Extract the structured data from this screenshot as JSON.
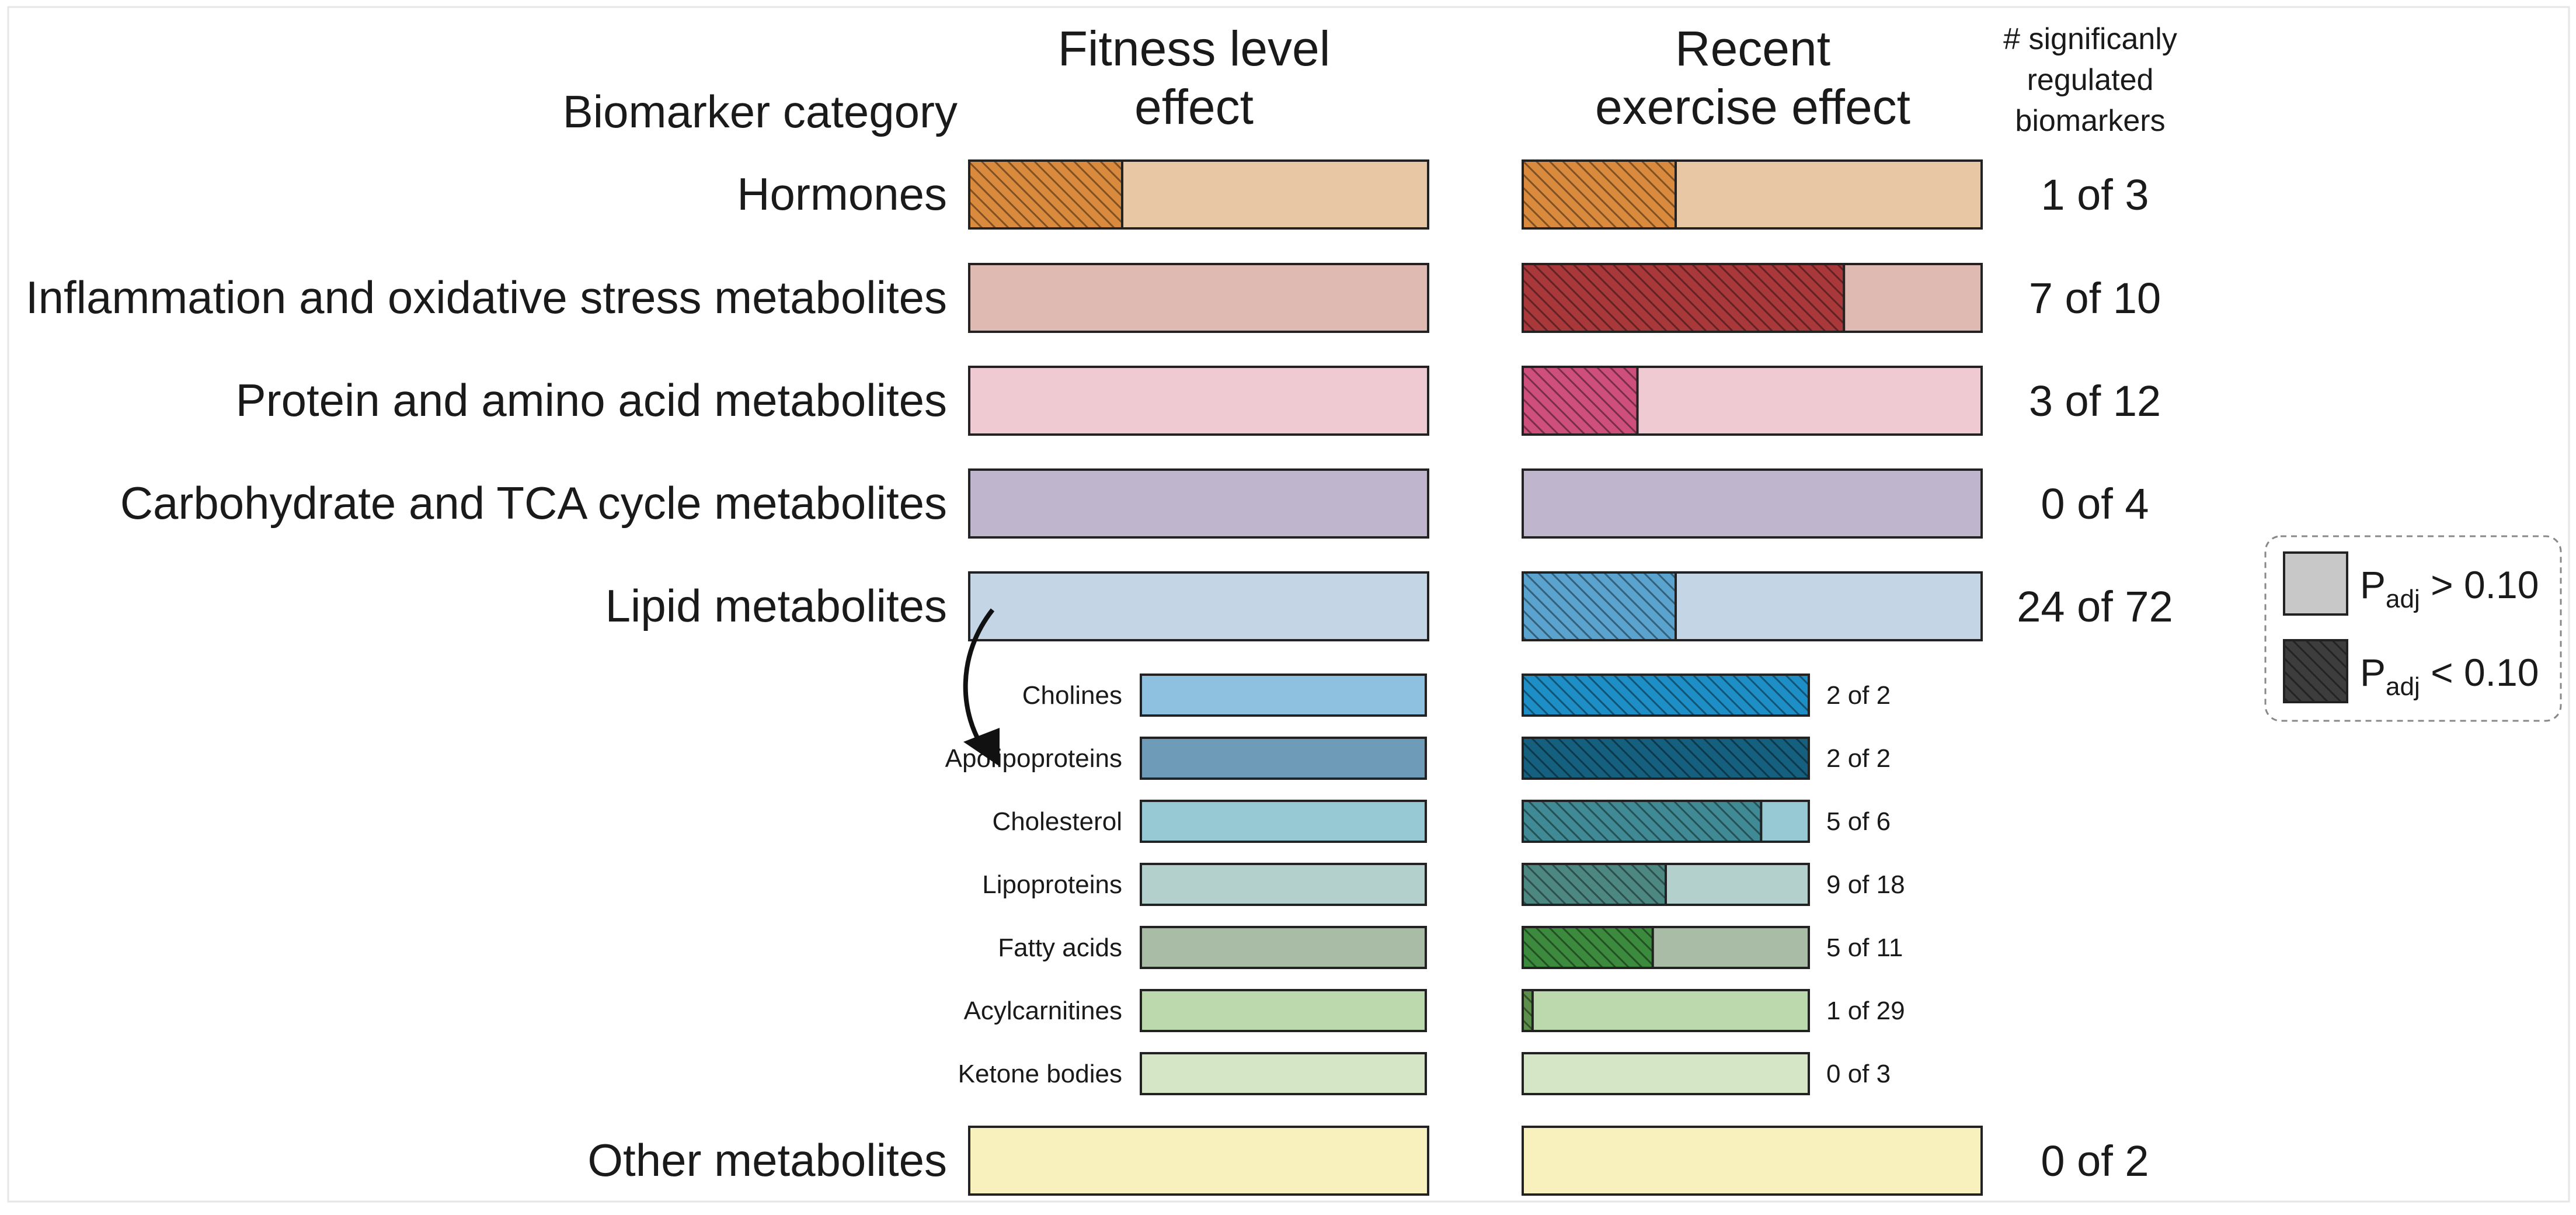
{
  "chart_data": {
    "type": "bar",
    "orientation": "horizontal",
    "stacked": true,
    "headers": {
      "category": "Biomarker category",
      "fitness": [
        "Fitness level",
        "effect"
      ],
      "exercise": [
        "Recent",
        "exercise effect"
      ],
      "count": [
        "# significanly",
        "regulated",
        "biomarkers"
      ]
    },
    "categories": [
      {
        "name": "Hormones",
        "level": "main",
        "significant": 1,
        "total": 3,
        "fitness_significant": 1,
        "count_label": "1 of 3",
        "color": "#e8c8a4",
        "sig_color": "#d98a3c"
      },
      {
        "name": "Inflammation and oxidative stress metabolites",
        "level": "main",
        "significant": 7,
        "total": 10,
        "fitness_significant": 0,
        "count_label": "7 of 10",
        "color": "#dfbab2",
        "sig_color": "#a8383a"
      },
      {
        "name": "Protein and amino acid metabolites",
        "level": "main",
        "significant": 3,
        "total": 12,
        "fitness_significant": 0,
        "count_label": "3 of 12",
        "color": "#efcad2",
        "sig_color": "#cf4f7c"
      },
      {
        "name": "Carbohydrate and TCA cycle  metabolites",
        "level": "main",
        "significant": 0,
        "total": 4,
        "fitness_significant": 0,
        "count_label": "0 of 4",
        "color": "#bfb5cd",
        "sig_color": "#8c7ca8"
      },
      {
        "name": "Lipid metabolites",
        "level": "main",
        "significant": 24,
        "total": 72,
        "fitness_significant": 0,
        "count_label": "24 of 72",
        "color": "#c4d6e6",
        "sig_color": "#5aa3cf"
      },
      {
        "name": "Cholines",
        "level": "sub",
        "significant": 2,
        "total": 2,
        "fitness_significant": 0,
        "count_label": "2 of 2",
        "color": "#8ec1df",
        "sig_color": "#1e8fc6"
      },
      {
        "name": "Apolipoproteins",
        "level": "sub",
        "significant": 2,
        "total": 2,
        "fitness_significant": 0,
        "count_label": "2 of 2",
        "color": "#6d9bb8",
        "sig_color": "#15607f"
      },
      {
        "name": "Cholesterol",
        "level": "sub",
        "significant": 5,
        "total": 6,
        "fitness_significant": 0,
        "count_label": "5 of 6",
        "color": "#96c9d4",
        "sig_color": "#3f8a94"
      },
      {
        "name": "Lipoproteins",
        "level": "sub",
        "significant": 9,
        "total": 18,
        "fitness_significant": 0,
        "count_label": "9 of 18",
        "color": "#b4d0cc",
        "sig_color": "#4d8782"
      },
      {
        "name": "Fatty acids",
        "level": "sub",
        "significant": 5,
        "total": 11,
        "fitness_significant": 0,
        "count_label": "5 of 11",
        "color": "#a9bca6",
        "sig_color": "#3b8a3d"
      },
      {
        "name": "Acylcarnitines",
        "level": "sub",
        "significant": 1,
        "total": 29,
        "fitness_significant": 0,
        "count_label": "1 of 29",
        "color": "#bcd9ad",
        "sig_color": "#5d8f4c"
      },
      {
        "name": "Ketone bodies",
        "level": "sub",
        "significant": 0,
        "total": 3,
        "fitness_significant": 0,
        "count_label": "0 of 3",
        "color": "#d4e6c6",
        "sig_color": "#8fb27d"
      },
      {
        "name": "Other metabolites",
        "level": "main",
        "significant": 0,
        "total": 2,
        "fitness_significant": 0,
        "count_label": "0 of 2",
        "color": "#f8f1bd",
        "sig_color": "#d8c95c"
      }
    ],
    "legend": {
      "placement": "right",
      "items": [
        {
          "label_main": "P",
          "label_sub": "adj",
          "label_rest": " > 0.10",
          "pattern": "solid",
          "color": "#c8c8c8"
        },
        {
          "label_main": "P",
          "label_sub": "adj",
          "label_rest": " < 0.10",
          "pattern": "hatched",
          "color": "#3d3d3d"
        }
      ]
    }
  }
}
